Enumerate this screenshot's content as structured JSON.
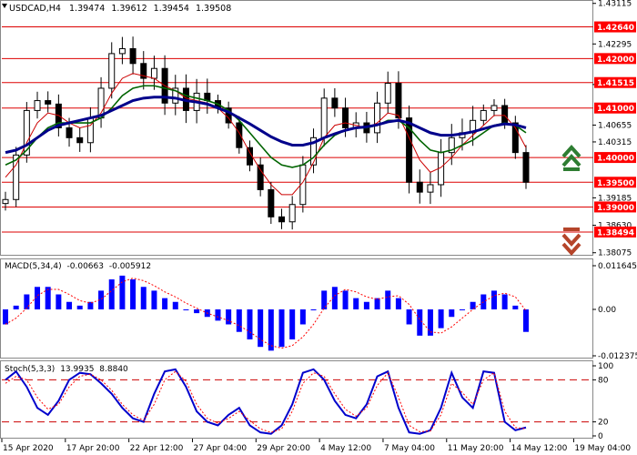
{
  "header": {
    "symbol": "USDCAD,H4",
    "open": "1.39474",
    "high": "1.39612",
    "low": "1.39454",
    "close": "1.39508"
  },
  "macd": {
    "label": "MACD(5,34,4)",
    "v1": "-0.00663",
    "v2": "-0.005912",
    "ticks": [
      "0.011645",
      "0.00",
      "-0.012375"
    ]
  },
  "stoch": {
    "label": "Stoch(5,3,3)",
    "v1": "13.9935",
    "v2": "8.8840",
    "ticks": [
      "100",
      "80",
      "20",
      "0"
    ]
  },
  "colors": {
    "level_line": "#dd0000",
    "level_label_bg": "#ff0000",
    "ma_fast": "#cc0000",
    "ma_mid": "#006400",
    "ma_slow": "#00008b",
    "macd_bar": "#0000ff",
    "signal": "#ff0000",
    "arrow_up": "#2e7d32",
    "arrow_down": "#b5442a"
  },
  "icons": {
    "up": "double-chevron-up-icon",
    "down": "double-chevron-down-icon"
  },
  "chart_data": {
    "type": "candlestick",
    "ylim": [
      1.3807,
      1.4311
    ],
    "price_ticks": [
      "1.43115",
      "1.42295",
      "1.41475",
      "1.40655",
      "1.40315",
      "1.39185",
      "1.38630",
      "1.38075"
    ],
    "levels": [
      "1.42640",
      "1.42000",
      "1.41515",
      "1.41000",
      "1.40000",
      "1.39500",
      "1.39000",
      "1.38494"
    ],
    "x_labels": [
      "15 Apr 2020",
      "17 Apr 20:00",
      "22 Apr 12:00",
      "27 Apr 04:00",
      "29 Apr 20:00",
      "4 May 12:00",
      "7 May 04:00",
      "11 May 20:00",
      "14 May 12:00",
      "19 May 04:00"
    ],
    "close": [
      1.3915,
      1.4005,
      1.4095,
      1.4115,
      1.4108,
      1.406,
      1.404,
      1.403,
      1.408,
      1.414,
      1.421,
      1.422,
      1.419,
      1.416,
      1.418,
      1.411,
      1.414,
      1.4095,
      1.413,
      1.4115,
      1.41,
      1.407,
      1.402,
      1.3985,
      1.3935,
      1.388,
      1.387,
      1.3905,
      1.3985,
      1.404,
      1.412,
      1.41,
      1.406,
      1.407,
      1.405,
      1.411,
      1.415,
      1.408,
      1.395,
      1.393,
      1.3945,
      1.401,
      1.404,
      1.405,
      1.4075,
      1.4095,
      1.4105,
      1.407,
      1.401,
      1.395
    ],
    "ma_fast": [
      1.396,
      1.3985,
      1.403,
      1.407,
      1.409,
      1.4085,
      1.407,
      1.406,
      1.4065,
      1.409,
      1.413,
      1.416,
      1.417,
      1.4165,
      1.416,
      1.4145,
      1.4135,
      1.412,
      1.4115,
      1.411,
      1.41,
      1.408,
      1.405,
      1.401,
      1.3975,
      1.3945,
      1.3925,
      1.3925,
      1.395,
      1.399,
      1.404,
      1.4065,
      1.407,
      1.4065,
      1.406,
      1.407,
      1.409,
      1.4085,
      1.404,
      1.3995,
      1.397,
      1.398,
      1.4,
      1.4025,
      1.4045,
      1.4065,
      1.4085,
      1.4085,
      1.406,
      1.402
    ],
    "ma_mid": [
      1.3985,
      1.3995,
      1.4015,
      1.404,
      1.406,
      1.407,
      1.407,
      1.407,
      1.407,
      1.408,
      1.41,
      1.4125,
      1.414,
      1.4145,
      1.4145,
      1.414,
      1.4135,
      1.4125,
      1.412,
      1.4115,
      1.4108,
      1.4095,
      1.4075,
      1.405,
      1.4025,
      1.4,
      1.3985,
      1.398,
      1.3985,
      1.4,
      1.4025,
      1.4045,
      1.4055,
      1.406,
      1.406,
      1.4065,
      1.4075,
      1.4075,
      1.406,
      1.4035,
      1.4015,
      1.401,
      1.4015,
      1.4025,
      1.4035,
      1.405,
      1.4065,
      1.407,
      1.4065,
      1.405
    ],
    "ma_slow": [
      1.401,
      1.4015,
      1.4025,
      1.404,
      1.4055,
      1.4065,
      1.407,
      1.4075,
      1.408,
      1.4085,
      1.4095,
      1.4105,
      1.4115,
      1.412,
      1.4122,
      1.4122,
      1.412,
      1.4115,
      1.4112,
      1.4108,
      1.41,
      1.4092,
      1.408,
      1.4068,
      1.4055,
      1.4042,
      1.4032,
      1.4025,
      1.4025,
      1.403,
      1.404,
      1.4048,
      1.4055,
      1.406,
      1.4062,
      1.4066,
      1.4072,
      1.4075,
      1.407,
      1.406,
      1.405,
      1.4045,
      1.4045,
      1.4048,
      1.4052,
      1.4058,
      1.4064,
      1.4068,
      1.4066,
      1.406
    ],
    "macd_hist": [
      -0.004,
      0.001,
      0.004,
      0.006,
      0.006,
      0.004,
      0.002,
      0.001,
      0.002,
      0.005,
      0.008,
      0.009,
      0.008,
      0.006,
      0.005,
      0.003,
      0.002,
      0.0,
      -0.001,
      -0.002,
      -0.003,
      -0.004,
      -0.006,
      -0.008,
      -0.01,
      -0.011,
      -0.01,
      -0.008,
      -0.004,
      0.0,
      0.005,
      0.006,
      0.005,
      0.003,
      0.002,
      0.003,
      0.005,
      0.003,
      -0.004,
      -0.007,
      -0.007,
      -0.005,
      -0.002,
      0.0,
      0.002,
      0.004,
      0.005,
      0.004,
      0.001,
      -0.006
    ],
    "stoch_k": [
      80,
      92,
      70,
      40,
      30,
      50,
      80,
      90,
      88,
      75,
      60,
      40,
      25,
      20,
      60,
      92,
      95,
      70,
      35,
      20,
      15,
      30,
      40,
      15,
      5,
      3,
      15,
      45,
      90,
      95,
      80,
      50,
      30,
      25,
      45,
      85,
      92,
      40,
      5,
      3,
      8,
      40,
      90,
      55,
      40,
      92,
      90,
      20,
      8,
      12
    ],
    "stoch_d": [
      75,
      85,
      80,
      55,
      38,
      45,
      70,
      85,
      88,
      80,
      65,
      45,
      30,
      22,
      45,
      80,
      92,
      78,
      45,
      25,
      18,
      25,
      35,
      22,
      10,
      5,
      10,
      35,
      75,
      90,
      85,
      60,
      38,
      28,
      40,
      72,
      90,
      55,
      15,
      6,
      7,
      30,
      75,
      62,
      45,
      80,
      90,
      35,
      12,
      10
    ]
  }
}
